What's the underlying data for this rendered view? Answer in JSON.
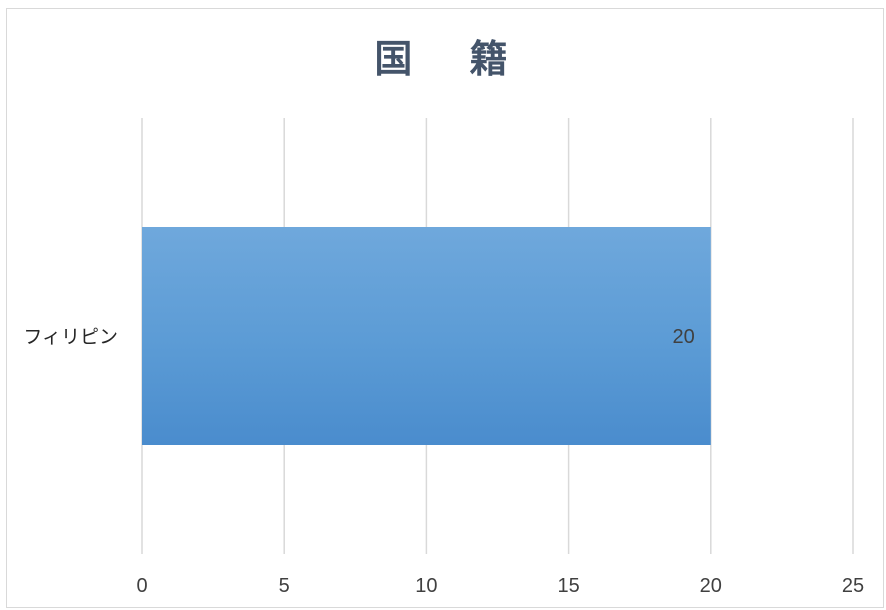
{
  "chart_data": {
    "type": "bar",
    "orientation": "horizontal",
    "title": "国 籍",
    "categories": [
      "フィリピン"
    ],
    "values": [
      20
    ],
    "data_labels": [
      "20"
    ],
    "xlim": [
      0,
      25
    ],
    "x_ticks": [
      "0",
      "5",
      "10",
      "15",
      "20",
      "25"
    ],
    "grid": true,
    "bar_color": "#5b9bd5"
  }
}
